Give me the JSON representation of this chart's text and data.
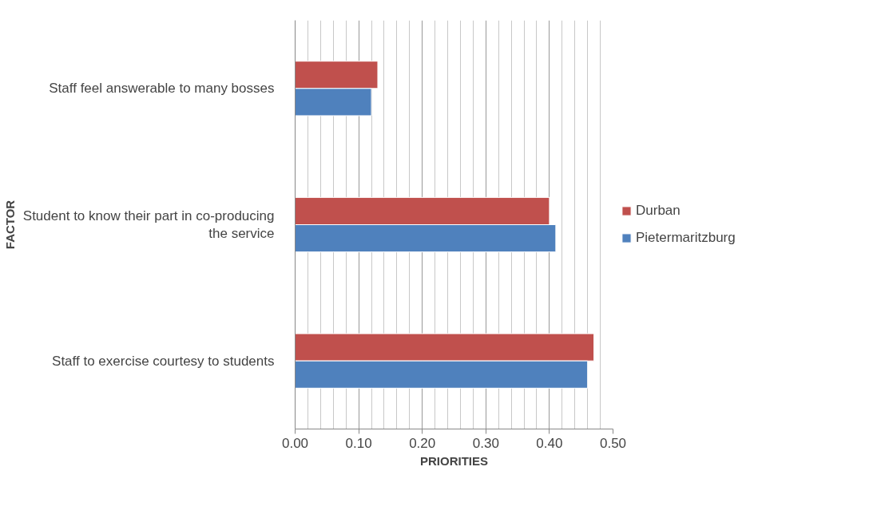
{
  "chart_data": {
    "type": "bar",
    "orientation": "horizontal",
    "xlabel": "PRIORITIES",
    "ylabel": "FACTOR",
    "categories": [
      "Staff feel answerable to many bosses",
      "Student to know their part in co-producing the service",
      "Staff to exercise courtesy to students"
    ],
    "series": [
      {
        "name": "Durban",
        "color": "#c0504d",
        "values": [
          0.13,
          0.4,
          0.47
        ]
      },
      {
        "name": "Pietermaritzburg",
        "color": "#4f81bd",
        "values": [
          0.12,
          0.41,
          0.46
        ]
      }
    ],
    "xlim": [
      0,
      0.5
    ],
    "xticks": [
      {
        "value": 0,
        "label": "0.00"
      },
      {
        "value": 0.1,
        "label": "0.10"
      },
      {
        "value": 0.2,
        "label": "0.20"
      },
      {
        "value": 0.3,
        "label": "0.30"
      },
      {
        "value": 0.4,
        "label": "0.40"
      },
      {
        "value": 0.5,
        "label": "0.50"
      }
    ],
    "grid": "x",
    "legend": "right"
  }
}
